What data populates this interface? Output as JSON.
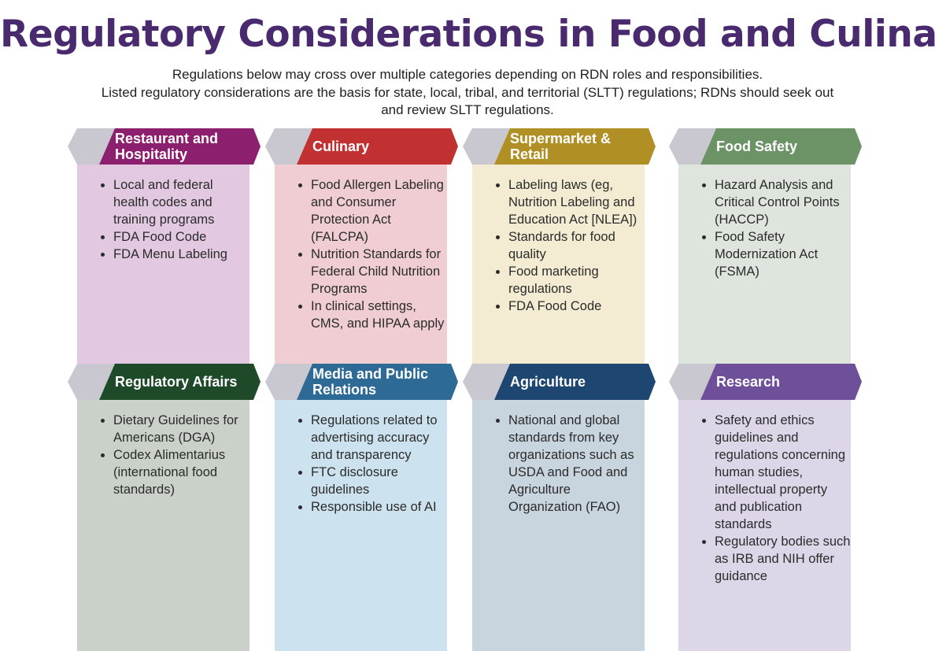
{
  "title": "Regulatory Considerations in Food and Culinary",
  "subtitle": [
    "Regulations below may cross over multiple categories depending on RDN roles and responsibilities.",
    "Listed regulatory considerations are the basis for state, local, tribal, and territorial (SLTT) regulations; RDNs should seek out",
    "and review SLTT regulations."
  ],
  "colors": {
    "title": "#4a2a6e",
    "tab_gray": "#c9c8d0"
  },
  "categories": [
    {
      "label": "Restaurant and Hospitality",
      "tab_color": "#8c1f6e",
      "body_color": "#e2c8e0",
      "items": [
        "Local and federal health codes and training programs",
        "FDA Food Code",
        "FDA Menu Labeling"
      ]
    },
    {
      "label": "Culinary",
      "tab_color": "#c23131",
      "body_color": "#efcdd2",
      "items": [
        "Food Allergen Labeling and Consumer Protection Act (FALCPA)",
        "Nutrition Standards for Federal Child Nutrition Programs",
        "In clinical settings, CMS, and HIPAA apply"
      ]
    },
    {
      "label": "Supermarket & Retail",
      "tab_color": "#b09025",
      "body_color": "#f3ecd3",
      "items": [
        "Labeling laws (eg, Nutrition Labeling and Education Act [NLEA])",
        "Standards for food quality",
        "Food marketing regulations",
        "FDA Food Code"
      ]
    },
    {
      "label": "Food Safety",
      "tab_color": "#6b9366",
      "body_color": "#dee5dd",
      "items": [
        "Hazard Analysis and Critical Control Points (HACCP)",
        "Food Safety Modernization Act (FSMA)"
      ]
    },
    {
      "label": "Regulatory Affairs",
      "tab_color": "#1f4a2a",
      "body_color": "#c9d1c9",
      "items": [
        "Dietary Guidelines for Americans (DGA)",
        "Codex Alimentarius (international food standards)"
      ]
    },
    {
      "label": "Media and Public Relations",
      "tab_color": "#2d6a96",
      "body_color": "#cce3ef",
      "items": [
        "Regulations related to advertising accuracy and transparency",
        "FTC disclosure guidelines",
        "Responsible use of AI"
      ]
    },
    {
      "label": "Agriculture",
      "tab_color": "#1d4670",
      "body_color": "#c8d5df",
      "items": [
        "National and global standards from key organizations such as USDA and Food and Agriculture Organization (FAO)"
      ]
    },
    {
      "label": "Research",
      "tab_color": "#6e4f9a",
      "body_color": "#dcd6e8",
      "items": [
        "Safety and ethics guidelines and regulations concerning human studies, intellectual property and publication standards",
        "Regulatory bodies such as IRB and NIH offer guidance"
      ]
    }
  ]
}
